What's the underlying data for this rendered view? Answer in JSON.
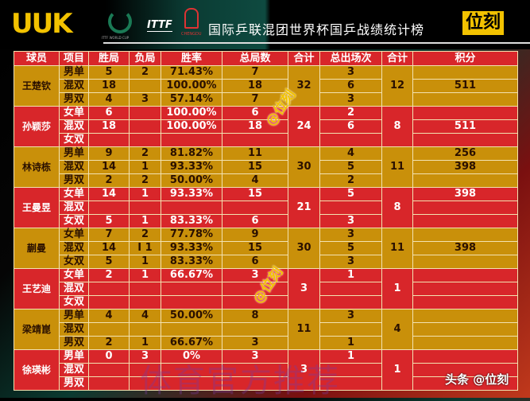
{
  "header": {
    "logo": "UUK",
    "emblem_world_cup": "ITTF WORLD CUP",
    "emblem_ittf": "ITTF",
    "emblem_chengdu": "CHENGDU",
    "title": "国际乒联混团世界杯国乒战绩统计榜",
    "brand": "位刻"
  },
  "columns": [
    "球员",
    "项目",
    "胜局",
    "负局",
    "胜率",
    "总局数",
    "合计",
    "总出场次",
    "合计",
    "积分"
  ],
  "players": [
    {
      "name": "王楚钦",
      "color": "g",
      "total": "32",
      "apps_total": "12",
      "rows": [
        {
          "event": "男单",
          "won": "5",
          "lost": "2",
          "rate": "71.43%",
          "games": "7",
          "apps": "3",
          "points": ""
        },
        {
          "event": "混双",
          "won": "18",
          "lost": "",
          "rate": "100.00%",
          "games": "18",
          "apps": "6",
          "points": "511"
        },
        {
          "event": "男双",
          "won": "4",
          "lost": "3",
          "rate": "57.14%",
          "games": "7",
          "apps": "3",
          "points": ""
        }
      ]
    },
    {
      "name": "孙颖莎",
      "color": "r",
      "total": "24",
      "apps_total": "8",
      "rows": [
        {
          "event": "女单",
          "won": "6",
          "lost": "",
          "rate": "100.00%",
          "games": "6",
          "apps": "2",
          "points": ""
        },
        {
          "event": "混双",
          "won": "18",
          "lost": "",
          "rate": "100.00%",
          "games": "18",
          "apps": "6",
          "points": "511"
        },
        {
          "event": "女双",
          "won": "",
          "lost": "",
          "rate": "",
          "games": "",
          "apps": "",
          "points": ""
        }
      ]
    },
    {
      "name": "林诗栋",
      "color": "g",
      "total": "30",
      "apps_total": "11",
      "rows": [
        {
          "event": "男单",
          "won": "9",
          "lost": "2",
          "rate": "81.82%",
          "games": "11",
          "apps": "4",
          "points": "256"
        },
        {
          "event": "混双",
          "won": "14",
          "lost": "1",
          "rate": "93.33%",
          "games": "15",
          "apps": "5",
          "points": "398"
        },
        {
          "event": "男双",
          "won": "2",
          "lost": "2",
          "rate": "50.00%",
          "games": "4",
          "apps": "2",
          "points": ""
        }
      ]
    },
    {
      "name": "王曼昱",
      "color": "r",
      "total": "21",
      "apps_total": "8",
      "rows": [
        {
          "event": "女单",
          "won": "14",
          "lost": "1",
          "rate": "93.33%",
          "games": "15",
          "apps": "5",
          "points": "398"
        },
        {
          "event": "混双",
          "won": "",
          "lost": "",
          "rate": "",
          "games": "",
          "apps": "",
          "points": ""
        },
        {
          "event": "女双",
          "won": "5",
          "lost": "1",
          "rate": "83.33%",
          "games": "6",
          "apps": "3",
          "points": ""
        }
      ]
    },
    {
      "name": "蒯曼",
      "color": "g",
      "total": "30",
      "apps_total": "11",
      "rows": [
        {
          "event": "女单",
          "won": "7",
          "lost": "2",
          "rate": "77.78%",
          "games": "9",
          "apps": "3",
          "points": ""
        },
        {
          "event": "混双",
          "won": "14",
          "lost": "I 1",
          "rate": "93.33%",
          "games": "15",
          "apps": "5",
          "points": "398"
        },
        {
          "event": "女双",
          "won": "5",
          "lost": "1",
          "rate": "83.33%",
          "games": "6",
          "apps": "3",
          "points": ""
        }
      ]
    },
    {
      "name": "王艺迪",
      "color": "r",
      "total": "3",
      "apps_total": "1",
      "rows": [
        {
          "event": "女单",
          "won": "2",
          "lost": "1",
          "rate": "66.67%",
          "games": "3",
          "apps": "1",
          "points": ""
        },
        {
          "event": "混双",
          "won": "",
          "lost": "",
          "rate": "",
          "games": "",
          "apps": "",
          "points": ""
        },
        {
          "event": "女双",
          "won": "",
          "lost": "",
          "rate": "",
          "games": "",
          "apps": "",
          "points": ""
        }
      ]
    },
    {
      "name": "梁靖崑",
      "color": "g",
      "total": "11",
      "apps_total": "4",
      "rows": [
        {
          "event": "男单",
          "won": "4",
          "lost": "4",
          "rate": "50.00%",
          "games": "8",
          "apps": "3",
          "points": ""
        },
        {
          "event": "混双",
          "won": "",
          "lost": "",
          "rate": "",
          "games": "",
          "apps": "",
          "points": ""
        },
        {
          "event": "男双",
          "won": "2",
          "lost": "1",
          "rate": "66.67%",
          "games": "3",
          "apps": "1",
          "points": ""
        }
      ]
    },
    {
      "name": "徐瑛彬",
      "color": "r",
      "total": "3",
      "apps_total": "1",
      "rows": [
        {
          "event": "男单",
          "won": "0",
          "lost": "3",
          "rate": "0%",
          "games": "3",
          "apps": "1",
          "points": ""
        },
        {
          "event": "混双",
          "won": "",
          "lost": "",
          "rate": "",
          "games": "",
          "apps": "",
          "points": ""
        },
        {
          "event": "男双",
          "won": "",
          "lost": "",
          "rate": "",
          "games": "",
          "apps": "",
          "points": ""
        }
      ]
    }
  ],
  "watermarks": {
    "handle": "@位刻",
    "faint": "体育官方推荐",
    "source": "头条 @位刻"
  }
}
